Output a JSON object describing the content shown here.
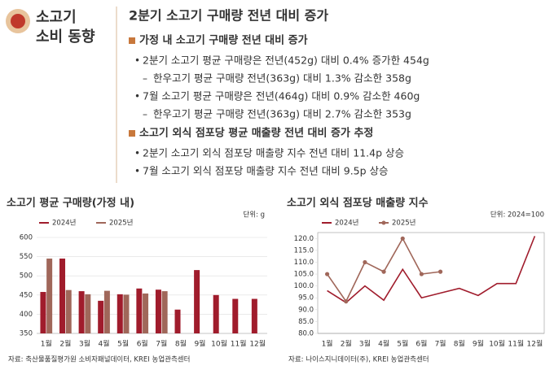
{
  "header": {
    "title_lines": [
      "소고기",
      "소비 동향"
    ]
  },
  "headline": "2분기 소고기 구매량 전년 대비 증가",
  "sections": [
    {
      "heading": "가정 내 소고기 구매량 전년 대비 증가",
      "items": [
        {
          "text": "2분기 소고기 평균 구매량은 전년(452g) 대비 0.4% 증가한 454g",
          "sub": [
            "한우고기 평균 구매량 전년(363g) 대비 1.3% 감소한 358g"
          ]
        },
        {
          "text": "7월 소고기 평균 구매량은 전년(464g) 대비 0.9% 감소한 460g",
          "sub": [
            "한우고기 평균 구매량 전년(363g) 대비 2.7% 감소한 353g"
          ]
        }
      ]
    },
    {
      "heading": "소고기 외식 점포당 평균 매출량 전년 대비 증가 추정",
      "items": [
        {
          "text": "2분기 소고기 외식 점포당 매출량 지수 전년 대비 11.4p 상승",
          "sub": []
        },
        {
          "text": "7월 소고기 외식 점포당 매출량 지수 전년 대비 9.5p 상승",
          "sub": []
        }
      ]
    }
  ],
  "chart_data": [
    {
      "type": "bar",
      "title": "소고기 평균 구매량(가정 내)",
      "unit": "단위: g",
      "source": "자료: 축산물품질평가원 소비자패널데이터, KREI 농업관측센터",
      "categories": [
        "1월",
        "2월",
        "3월",
        "4월",
        "5월",
        "6월",
        "7월",
        "8월",
        "9월",
        "10월",
        "11월",
        "12월"
      ],
      "series": [
        {
          "name": "2024년",
          "color": "#a01c2c",
          "values": [
            458,
            545,
            460,
            435,
            452,
            467,
            464,
            412,
            515,
            450,
            440,
            440
          ]
        },
        {
          "name": "2025년",
          "color": "#a0675a",
          "values": [
            545,
            463,
            452,
            461,
            451,
            454,
            460,
            null,
            null,
            null,
            null,
            null
          ]
        }
      ],
      "ylim": [
        350,
        600
      ],
      "yticks": [
        350,
        400,
        450,
        500,
        550,
        600
      ],
      "grid": true
    },
    {
      "type": "line",
      "title": "소고기 외식 점포당 매출량 지수",
      "unit": "단위: 2024=100",
      "source": "자료: 나이스지니데이터(주), KREI 농업관측센터",
      "categories": [
        "1월",
        "2월",
        "3월",
        "4월",
        "5월",
        "6월",
        "7월",
        "8월",
        "9월",
        "10월",
        "11월",
        "12월"
      ],
      "series": [
        {
          "name": "2024년",
          "color": "#a01c2c",
          "values": [
            98,
            93,
            100,
            94,
            107,
            95,
            97,
            99,
            96,
            101,
            101,
            121
          ]
        },
        {
          "name": "2025년",
          "color": "#a0675a",
          "values": [
            105,
            93.5,
            110,
            106,
            120,
            105,
            106,
            null,
            null,
            null,
            null,
            null
          ]
        }
      ],
      "ylim": [
        80,
        122.5
      ],
      "yticks": [
        {
          "value": 80,
          "label": "80.0"
        },
        {
          "value": 85,
          "label": "85.0"
        },
        {
          "value": 90,
          "label": "90.0"
        },
        {
          "value": 95,
          "label": "95.0"
        },
        {
          "value": 100,
          "label": "100.0"
        },
        {
          "value": 105,
          "label": "105.0"
        },
        {
          "value": 110,
          "label": "110.0"
        },
        {
          "value": 115,
          "label": "115.0"
        },
        {
          "value": 120,
          "label": "120.0"
        }
      ],
      "grid": false
    }
  ]
}
